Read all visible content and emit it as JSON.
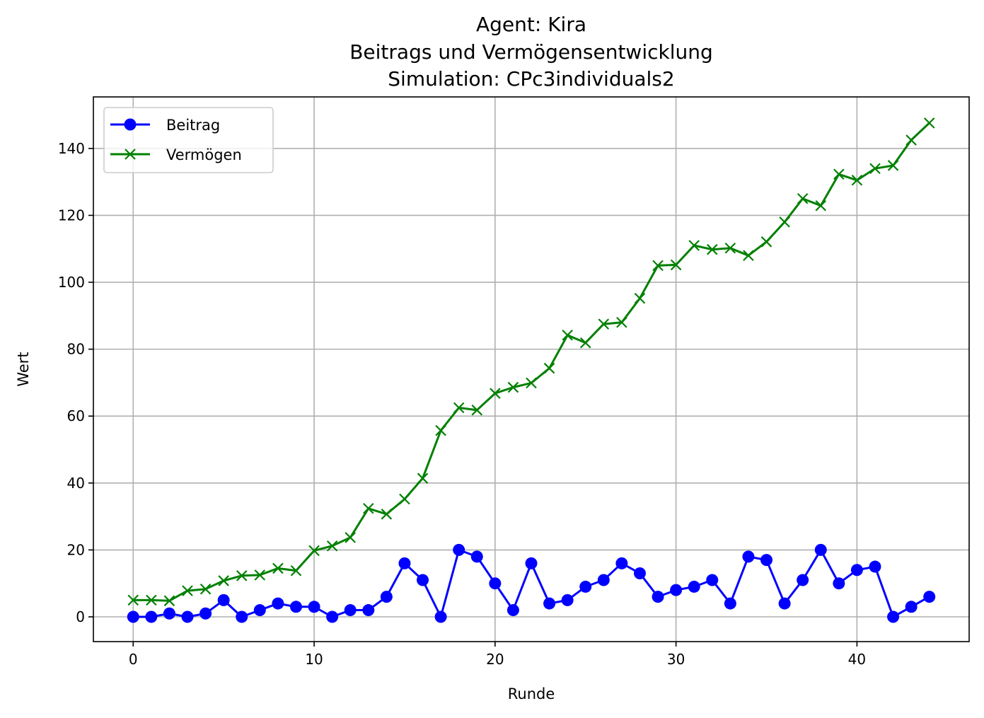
{
  "chart_data": {
    "type": "line",
    "title_lines": [
      "Agent: Kira",
      "Beitrags und Vermögensentwicklung",
      "Simulation: CPc3individuals2"
    ],
    "xlabel": "Runde",
    "ylabel": "Wert",
    "xlim": [
      -2.2,
      46.2
    ],
    "ylim": [
      -7.4,
      155.4
    ],
    "xticks": [
      0,
      10,
      20,
      30,
      40
    ],
    "yticks": [
      0,
      20,
      40,
      60,
      80,
      100,
      120,
      140
    ],
    "grid": true,
    "legend_position": "top-left",
    "x": [
      0,
      1,
      2,
      3,
      4,
      5,
      6,
      7,
      8,
      9,
      10,
      11,
      12,
      13,
      14,
      15,
      16,
      17,
      18,
      19,
      20,
      21,
      22,
      23,
      24,
      25,
      26,
      27,
      28,
      29,
      30,
      31,
      32,
      33,
      34,
      35,
      36,
      37,
      38,
      39,
      40,
      41,
      42,
      43,
      44
    ],
    "series": [
      {
        "name": "Beitrag",
        "color": "#0000ff",
        "marker": "circle",
        "values": [
          0,
          0,
          1,
          0,
          1,
          5,
          0,
          2,
          4,
          3,
          3,
          0,
          2,
          2,
          6,
          16,
          11,
          0,
          20,
          18,
          10,
          2,
          16,
          4,
          5,
          9,
          11,
          16,
          13,
          6,
          8,
          9,
          11,
          4,
          18,
          17,
          4,
          11,
          20,
          10,
          14,
          15,
          0,
          3,
          6
        ]
      },
      {
        "name": "Vermögen",
        "color": "#008000",
        "marker": "x",
        "values": [
          5,
          5,
          4.8,
          7.8,
          8.3,
          10.8,
          12.3,
          12.5,
          14.5,
          13.8,
          19.8,
          21.2,
          23.7,
          32.4,
          30.7,
          35.2,
          41.4,
          55.7,
          62.5,
          61.8,
          66.8,
          68.6,
          69.9,
          74.3,
          84.2,
          81.9,
          87.5,
          88,
          95.2,
          105,
          105.2,
          111,
          109.8,
          110.2,
          108,
          112.1,
          118,
          125,
          122.9,
          132.3,
          130.5,
          134,
          134.9,
          142.5,
          147.6
        ]
      }
    ]
  }
}
